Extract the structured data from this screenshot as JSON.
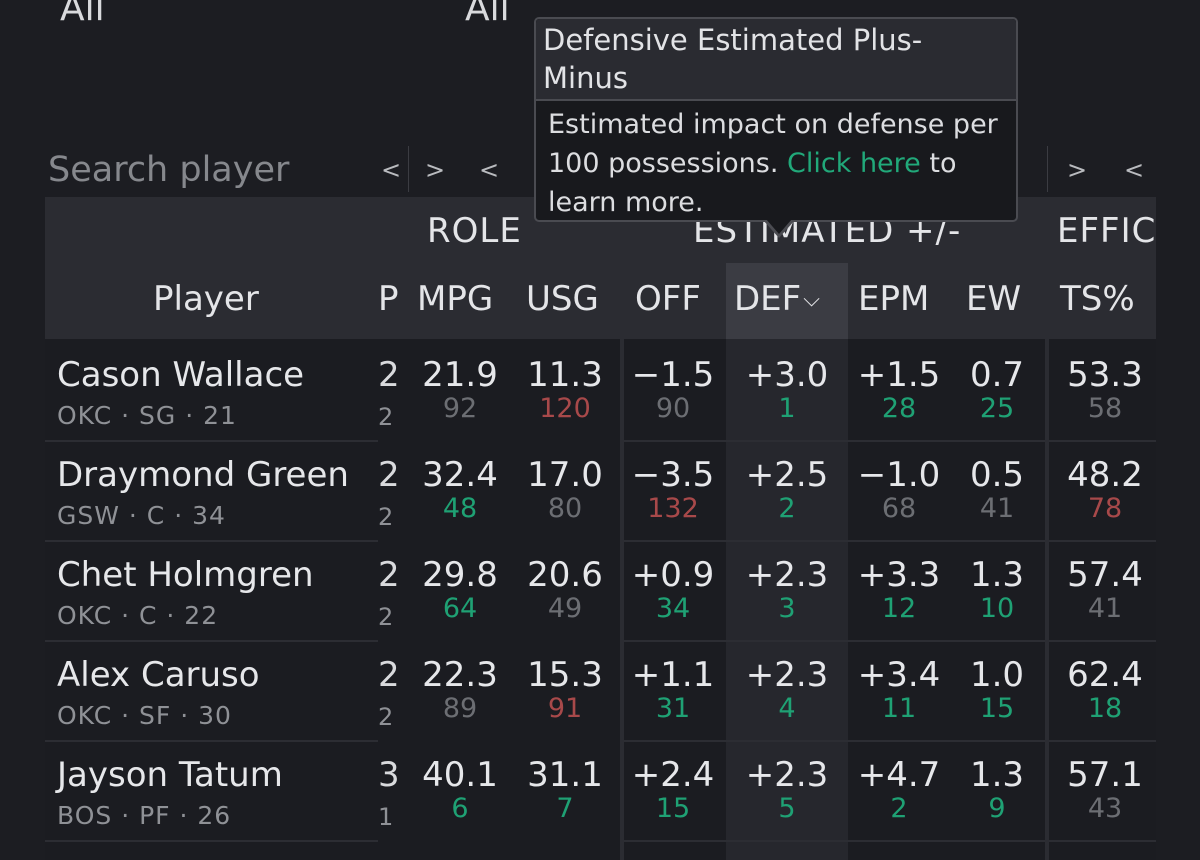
{
  "filters": [
    "All",
    "All"
  ],
  "search": {
    "placeholder": "Search player"
  },
  "nav_buttons": [
    "<",
    ">",
    "<",
    ">",
    "<"
  ],
  "groups": {
    "role": "ROLE",
    "est": "ESTIMATED +/-",
    "eff": "EFFIC"
  },
  "columns": {
    "player": "Player",
    "gp_cut": "P",
    "mpg": "MPG",
    "usg": "USG",
    "off": "OFF",
    "def": "DEF",
    "epm": "EPM",
    "ew": "EW",
    "ts": "TS%"
  },
  "sort_indicator": "⌵",
  "tooltip": {
    "title": "Defensive Estimated Plus-Minus",
    "body": "Estimated impact on defense per 100 possessions.",
    "link": "Click here",
    "tail": "to learn more."
  },
  "colors": {
    "good": "#1fa174",
    "bad": "#a8494a",
    "neutral": "#6c6e73",
    "link": "#21a97a"
  },
  "players": [
    {
      "name": "Cason Wallace",
      "meta": "OKC · SG · 21",
      "cut_top": "2",
      "cut_bot": "2",
      "mpg": "21.9",
      "mpg_rk": "92",
      "mpg_c": "neutral",
      "usg": "11.3",
      "usg_rk": "120",
      "usg_c": "bad",
      "off": "−1.5",
      "off_rk": "90",
      "off_c": "neutral",
      "def": "+3.0",
      "def_rk": "1",
      "def_c": "good",
      "epm": "+1.5",
      "epm_rk": "28",
      "epm_c": "good",
      "ew": "0.7",
      "ew_rk": "25",
      "ew_c": "good",
      "ts": "53.3",
      "ts_rk": "58",
      "ts_c": "neutral"
    },
    {
      "name": "Draymond Green",
      "meta": "GSW · C · 34",
      "cut_top": "2",
      "cut_bot": "2",
      "mpg": "32.4",
      "mpg_rk": "48",
      "mpg_c": "good",
      "usg": "17.0",
      "usg_rk": "80",
      "usg_c": "neutral",
      "off": "−3.5",
      "off_rk": "132",
      "off_c": "bad",
      "def": "+2.5",
      "def_rk": "2",
      "def_c": "good",
      "epm": "−1.0",
      "epm_rk": "68",
      "epm_c": "neutral",
      "ew": "0.5",
      "ew_rk": "41",
      "ew_c": "neutral",
      "ts": "48.2",
      "ts_rk": "78",
      "ts_c": "bad"
    },
    {
      "name": "Chet Holmgren",
      "meta": "OKC · C · 22",
      "cut_top": "2",
      "cut_bot": "2",
      "mpg": "29.8",
      "mpg_rk": "64",
      "mpg_c": "good",
      "usg": "20.6",
      "usg_rk": "49",
      "usg_c": "neutral",
      "off": "+0.9",
      "off_rk": "34",
      "off_c": "good",
      "def": "+2.3",
      "def_rk": "3",
      "def_c": "good",
      "epm": "+3.3",
      "epm_rk": "12",
      "epm_c": "good",
      "ew": "1.3",
      "ew_rk": "10",
      "ew_c": "good",
      "ts": "57.4",
      "ts_rk": "41",
      "ts_c": "neutral"
    },
    {
      "name": "Alex Caruso",
      "meta": "OKC · SF · 30",
      "cut_top": "2",
      "cut_bot": "2",
      "mpg": "22.3",
      "mpg_rk": "89",
      "mpg_c": "neutral",
      "usg": "15.3",
      "usg_rk": "91",
      "usg_c": "bad",
      "off": "+1.1",
      "off_rk": "31",
      "off_c": "good",
      "def": "+2.3",
      "def_rk": "4",
      "def_c": "good",
      "epm": "+3.4",
      "epm_rk": "11",
      "epm_c": "good",
      "ew": "1.0",
      "ew_rk": "15",
      "ew_c": "good",
      "ts": "62.4",
      "ts_rk": "18",
      "ts_c": "good"
    },
    {
      "name": "Jayson Tatum",
      "meta": "BOS · PF · 26",
      "cut_top": "3",
      "cut_bot": "1",
      "mpg": "40.1",
      "mpg_rk": "6",
      "mpg_c": "good",
      "usg": "31.1",
      "usg_rk": "7",
      "usg_c": "good",
      "off": "+2.4",
      "off_rk": "15",
      "off_c": "good",
      "def": "+2.3",
      "def_rk": "5",
      "def_c": "good",
      "epm": "+4.7",
      "epm_rk": "2",
      "epm_c": "good",
      "ew": "1.3",
      "ew_rk": "9",
      "ew_c": "good",
      "ts": "57.1",
      "ts_rk": "43",
      "ts_c": "neutral"
    }
  ]
}
